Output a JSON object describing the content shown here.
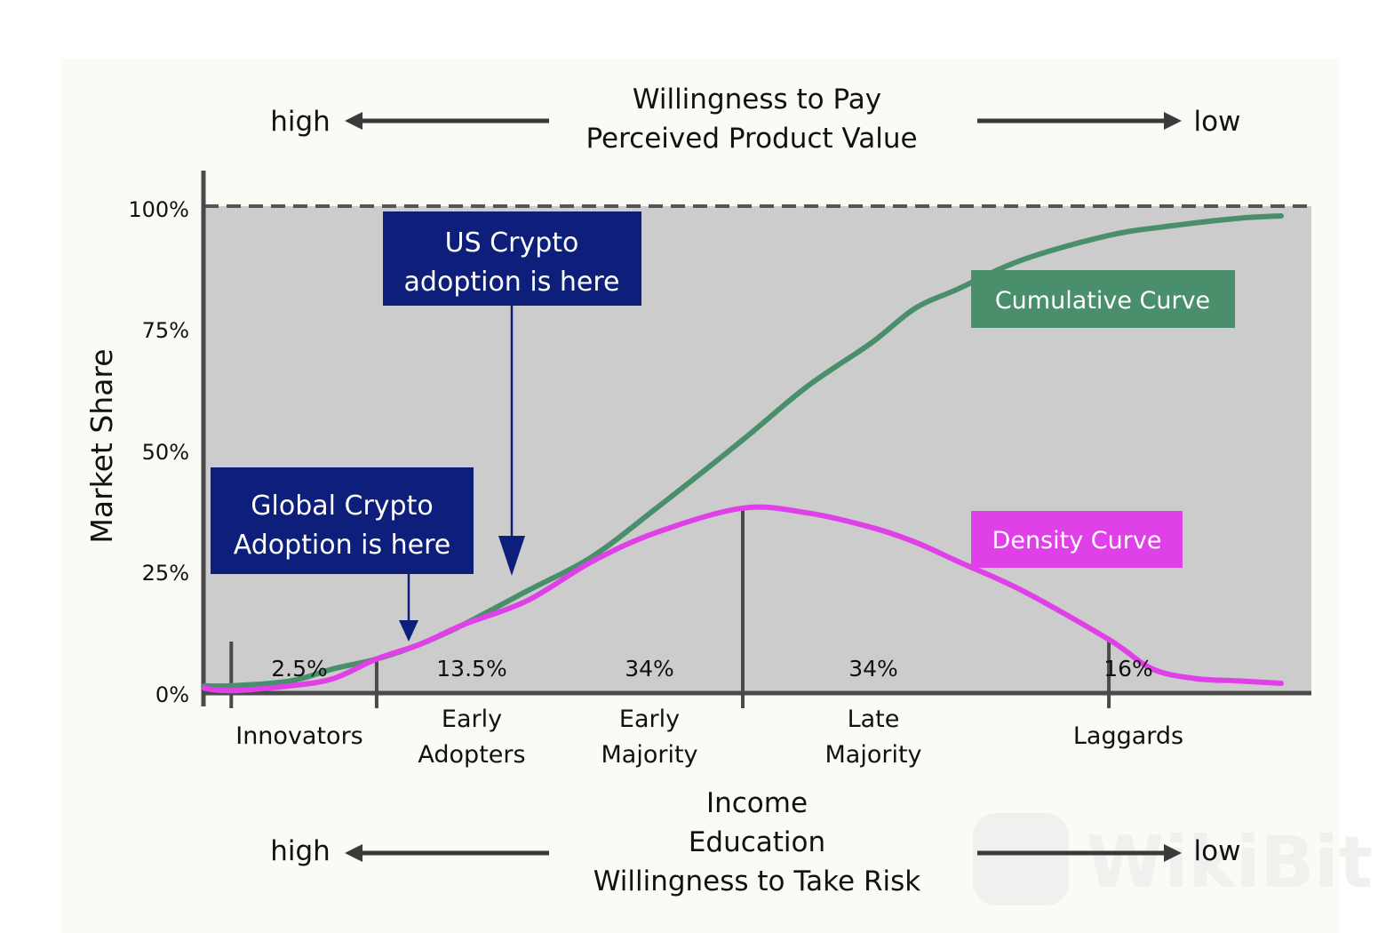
{
  "chart_data": {
    "type": "line",
    "ylabel": "Market Share",
    "ylim": [
      0,
      100
    ],
    "y_ticks": [
      "0%",
      "25%",
      "50%",
      "75%",
      "100%"
    ],
    "top_axis": {
      "lines": [
        "Willingness to Pay",
        "Perceived Product Value"
      ],
      "left": "high",
      "right": "low"
    },
    "bottom_axis": {
      "lines": [
        "Income",
        "Education",
        "Willingness to Take Risk"
      ],
      "left": "high",
      "right": "low"
    },
    "segments": [
      {
        "lines": [
          "Innovators"
        ],
        "share": "2.5%"
      },
      {
        "lines": [
          "Early",
          "Adopters"
        ],
        "share": "13.5%"
      },
      {
        "lines": [
          "Early",
          "Majority"
        ],
        "share": "34%"
      },
      {
        "lines": [
          "Late",
          "Majority"
        ],
        "share": "34%"
      },
      {
        "lines": [
          "Laggards"
        ],
        "share": "16%"
      }
    ],
    "boundaries": [
      2.5,
      16,
      50,
      84
    ],
    "x_range": [
      0,
      100
    ],
    "series": [
      {
        "name": "Cumulative Curve",
        "color": "#4a8f6b",
        "x": [
          0,
          2.5,
          8,
          12,
          16,
          20,
          24,
          30,
          36,
          42,
          50,
          56,
          62,
          66,
          70,
          76,
          84,
          90,
          96,
          100
        ],
        "y": [
          1.5,
          1.5,
          2.5,
          5,
          7,
          10,
          14,
          21,
          28,
          38,
          52,
          63,
          72,
          79,
          83,
          89,
          94,
          96,
          97.5,
          98
        ]
      },
      {
        "name": "Density Curve",
        "color": "#e040e8",
        "x": [
          0,
          2.5,
          8,
          12,
          16,
          20,
          24,
          30,
          36,
          42,
          50,
          56,
          62,
          66,
          70,
          76,
          84,
          88,
          92,
          96,
          100
        ],
        "y": [
          1,
          0.5,
          1.5,
          3,
          7,
          10,
          14,
          19,
          27,
          33,
          38,
          37,
          34,
          31,
          27,
          21,
          11,
          5,
          3,
          2.5,
          2
        ]
      }
    ],
    "annotations": [
      {
        "lines": [
          "US Crypto",
          "adoption is here"
        ],
        "x": 26
      },
      {
        "lines": [
          "Global Crypto",
          "Adoption is here"
        ],
        "x": 17.5
      }
    ],
    "grid": false,
    "legend": "right",
    "colors": {
      "plot_bg": "#cccccc",
      "annotation_box": "#0d1f7a",
      "axis": "#4a4a4a"
    }
  },
  "watermark": "WikiBit"
}
